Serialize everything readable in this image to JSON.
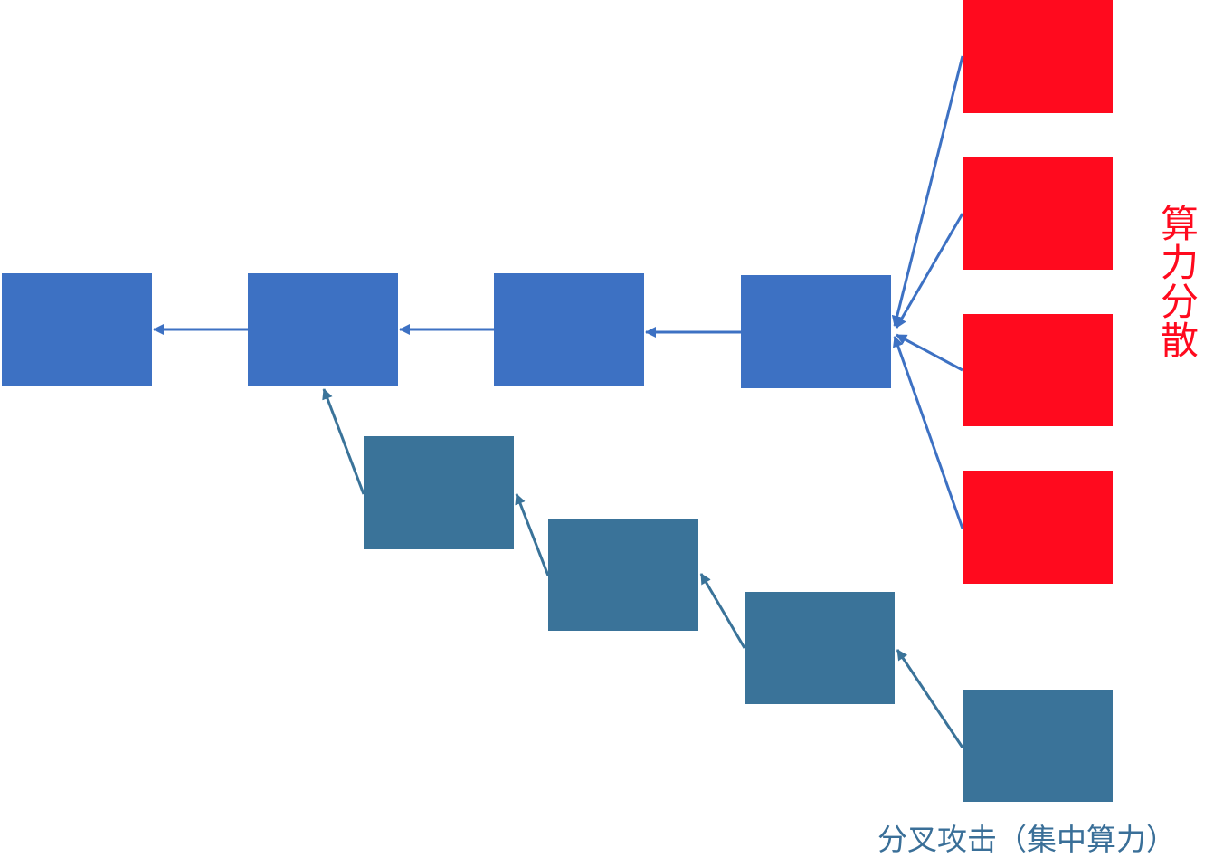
{
  "labels": {
    "scatter": "算力分散",
    "fork_attack": "分叉攻击（集中算力）"
  },
  "colors": {
    "main_block": "#3d71c3",
    "fork_block": "#3a7399",
    "scatter_block": "#ff0a1e",
    "arrow": "#3d71c3",
    "scatter_text": "#ff0a1e",
    "fork_text": "#3a6f98"
  }
}
